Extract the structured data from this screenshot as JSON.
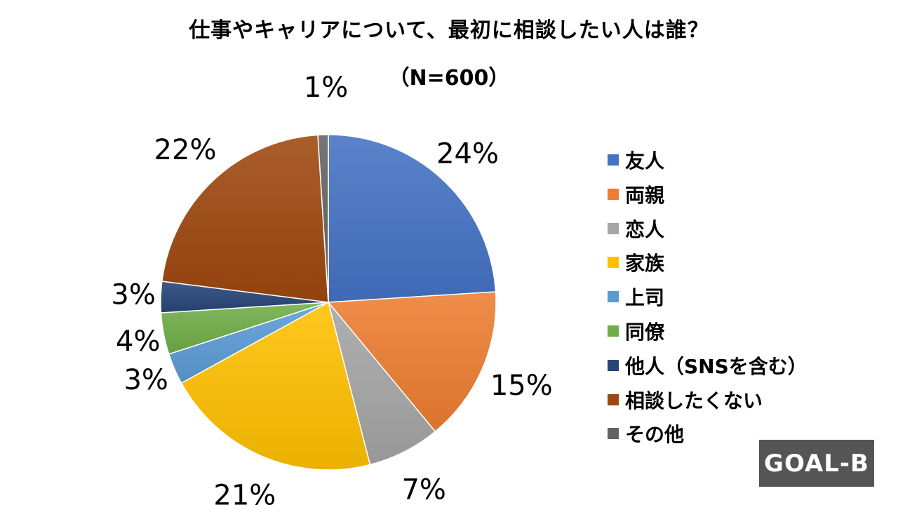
{
  "title": "仕事やキャリアについて、最初に相談したい人は誰？",
  "subtitle": "（N=600）",
  "logo_text": "GOAL-B",
  "chart_data": {
    "type": "pie",
    "title": "仕事やキャリアについて、最初に相談したい人は誰？",
    "subtitle": "（N=600）",
    "legend_position": "right",
    "slices": [
      {
        "label": "友人",
        "value": 24,
        "display": "24%",
        "color": "#4472C4"
      },
      {
        "label": "両親",
        "value": 15,
        "display": "15%",
        "color": "#ED7D31"
      },
      {
        "label": "恋人",
        "value": 7,
        "display": "7%",
        "color": "#A5A5A5"
      },
      {
        "label": "家族",
        "value": 21,
        "display": "21%",
        "color": "#FFC000"
      },
      {
        "label": "上司",
        "value": 3,
        "display": "3%",
        "color": "#5B9BD5"
      },
      {
        "label": "同僚",
        "value": 4,
        "display": "4%",
        "color": "#70AD47"
      },
      {
        "label": "他人（SNSを含む）",
        "value": 3,
        "display": "3%",
        "color": "#264478"
      },
      {
        "label": "相談したくない",
        "value": 22,
        "display": "22%",
        "color": "#9E480E"
      },
      {
        "label": "その他",
        "value": 1,
        "display": "1%",
        "color": "#636363"
      }
    ]
  }
}
